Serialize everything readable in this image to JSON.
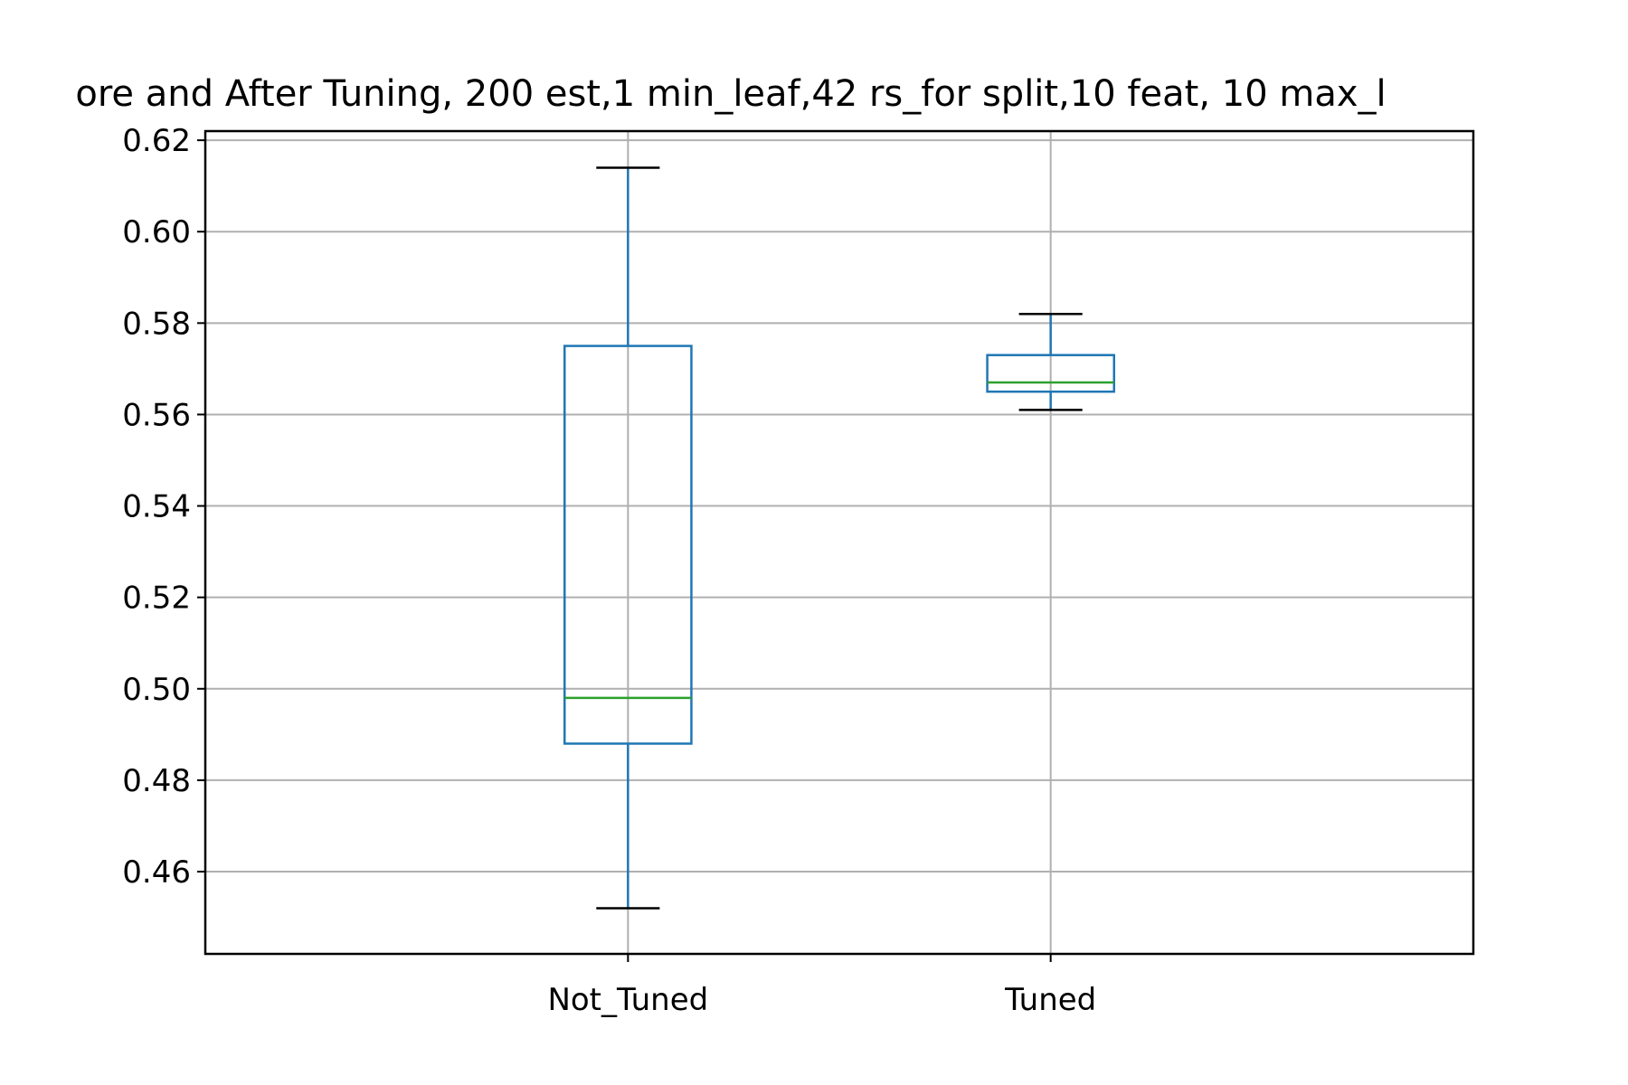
{
  "chart_data": {
    "type": "box",
    "title": "ore and After Tuning, 200 est,1 min_leaf,42 rs_for split,10 feat, 10 max_l",
    "xlabel": "",
    "ylabel": "",
    "categories": [
      "Not_Tuned",
      "Tuned"
    ],
    "boxes": [
      {
        "category": "Not_Tuned",
        "whisker_low": 0.452,
        "q1": 0.488,
        "median": 0.498,
        "q3": 0.575,
        "whisker_high": 0.614
      },
      {
        "category": "Tuned",
        "whisker_low": 0.561,
        "q1": 0.565,
        "median": 0.567,
        "q3": 0.573,
        "whisker_high": 0.582
      }
    ],
    "ylim": [
      0.442,
      0.622
    ],
    "yticks": [
      0.46,
      0.48,
      0.5,
      0.52,
      0.54,
      0.56,
      0.58,
      0.6,
      0.62
    ],
    "ytick_labels": [
      "0.46",
      "0.48",
      "0.50",
      "0.52",
      "0.54",
      "0.56",
      "0.58",
      "0.60",
      "0.62"
    ],
    "grid": true,
    "colors": {
      "box": "#1f77b4",
      "median": "#2ca02c",
      "cap": "#000000",
      "grid": "#b0b0b0"
    }
  }
}
